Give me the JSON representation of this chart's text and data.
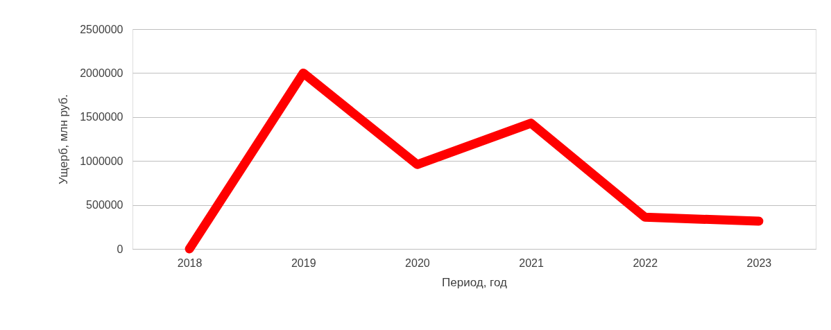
{
  "chart_data": {
    "type": "line",
    "xlabel": "Период, год",
    "ylabel": "Ущерб, млн руб.",
    "categories": [
      "2018",
      "2019",
      "2020",
      "2021",
      "2022",
      "2023"
    ],
    "series": [
      {
        "color": "#ff0000",
        "values": [
          0,
          2000000,
          960000,
          1430000,
          360000,
          315000
        ]
      }
    ],
    "ylim": [
      0,
      2500000
    ],
    "yticks": [
      0,
      500000,
      1000000,
      1500000,
      2000000,
      2500000
    ],
    "grid": "y",
    "legend": false,
    "line_style": "solid"
  }
}
